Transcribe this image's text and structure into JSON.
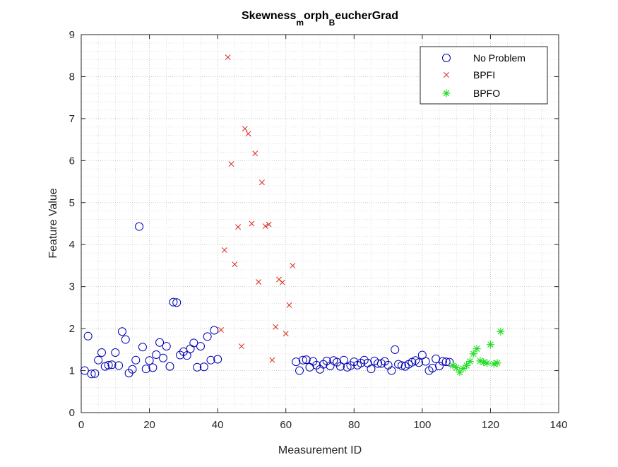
{
  "chart_data": {
    "type": "scatter",
    "title": "Skewness",
    "title_sub1": "m",
    "title_mid": "orph",
    "title_sub2": "B",
    "title_end": "eucherGrad",
    "xlabel": "Measurement ID",
    "ylabel": "Feature Value",
    "xlim": [
      0,
      140
    ],
    "ylim": [
      0,
      9
    ],
    "xticks": [
      0,
      20,
      40,
      60,
      80,
      100,
      120,
      140
    ],
    "yticks": [
      0,
      1,
      2,
      3,
      4,
      5,
      6,
      7,
      8,
      9
    ],
    "grid": "minor dotted",
    "legend_position": "top-right",
    "series": [
      {
        "name": "No Problem",
        "marker": "circle",
        "color": "#0000b4",
        "x": [
          1,
          2,
          3,
          4,
          5,
          6,
          7,
          8,
          9,
          10,
          11,
          12,
          13,
          14,
          15,
          16,
          17,
          18,
          19,
          20,
          21,
          22,
          23,
          24,
          25,
          26,
          27,
          28,
          29,
          30,
          31,
          32,
          33,
          34,
          35,
          36,
          37,
          38,
          39,
          40,
          63,
          64,
          65,
          66,
          67,
          68,
          69,
          70,
          71,
          72,
          73,
          74,
          75,
          76,
          77,
          78,
          79,
          80,
          81,
          82,
          83,
          84,
          85,
          86,
          87,
          88,
          89,
          90,
          91,
          92,
          93,
          94,
          95,
          96,
          97,
          98,
          99,
          100,
          101,
          102,
          103,
          104,
          105,
          106,
          107,
          108
        ],
        "y": [
          1.0,
          1.82,
          0.92,
          0.93,
          1.25,
          1.43,
          1.1,
          1.13,
          1.14,
          1.43,
          1.12,
          1.93,
          1.74,
          0.94,
          1.03,
          1.25,
          4.43,
          1.56,
          1.04,
          1.24,
          1.07,
          1.38,
          1.67,
          1.3,
          1.58,
          1.1,
          2.63,
          2.62,
          1.37,
          1.45,
          1.36,
          1.52,
          1.66,
          1.08,
          1.58,
          1.09,
          1.81,
          1.25,
          1.96,
          1.27,
          1.21,
          1.0,
          1.25,
          1.26,
          1.08,
          1.22,
          1.13,
          1.03,
          1.15,
          1.23,
          1.11,
          1.24,
          1.2,
          1.1,
          1.25,
          1.08,
          1.12,
          1.21,
          1.13,
          1.18,
          1.25,
          1.18,
          1.04,
          1.23,
          1.17,
          1.17,
          1.22,
          1.13,
          1.0,
          1.5,
          1.15,
          1.12,
          1.1,
          1.15,
          1.2,
          1.24,
          1.19,
          1.37,
          1.22,
          1.0,
          1.06,
          1.28,
          1.11,
          1.22,
          1.21,
          1.2
        ]
      },
      {
        "name": "BPFI",
        "marker": "x",
        "color": "#d9281c",
        "x": [
          41,
          42,
          43,
          44,
          45,
          46,
          47,
          48,
          49,
          50,
          51,
          52,
          53,
          54,
          55,
          56,
          57,
          58,
          59,
          60,
          61,
          62
        ],
        "y": [
          1.97,
          3.87,
          8.46,
          5.92,
          3.53,
          4.42,
          1.58,
          6.76,
          6.64,
          4.5,
          6.17,
          3.11,
          5.48,
          4.44,
          4.48,
          1.25,
          2.04,
          3.17,
          3.1,
          1.88,
          2.56,
          3.5
        ]
      },
      {
        "name": "BPFO",
        "marker": "star",
        "color": "#22dd22",
        "x": [
          109,
          110,
          111,
          112,
          113,
          114,
          115,
          116,
          117,
          118,
          119,
          120,
          121,
          122,
          123
        ],
        "y": [
          1.12,
          1.07,
          0.96,
          1.05,
          1.12,
          1.22,
          1.4,
          1.52,
          1.23,
          1.2,
          1.18,
          1.62,
          1.16,
          1.18,
          1.93
        ]
      }
    ]
  }
}
